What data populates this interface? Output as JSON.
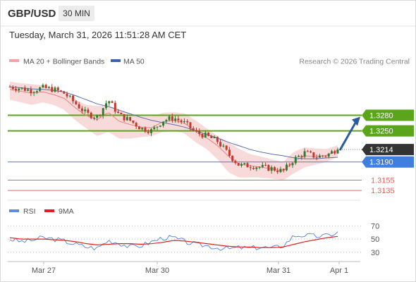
{
  "header": {
    "symbol": "GBP/USD",
    "timeframe": "30 MIN"
  },
  "datetime": "Tuesday, March 31, 2026 11:51:28 AM CET",
  "legend": {
    "ma20_label": "MA 20 + Bollinger Bands",
    "ma50_label": "MA 50",
    "copyright": "Research © 2026 Trading Central",
    "rsi_label": "RSI",
    "rsi_ma_label": "9MA"
  },
  "colors": {
    "bullish_candle": "#2f7d2f",
    "bearish_candle": "#c0392b",
    "bollinger_fill": "#f8d3d3",
    "ma20_line": "#e88080",
    "ma50_line": "#5470b0",
    "resistance": "#5aa51a",
    "current": "#333333",
    "pivot": "#3f7fe0",
    "support": "#e06666",
    "rsi_line": "#5b8ce0",
    "rsi_ma_line": "#e02020",
    "arrow": "#2c5aa0"
  },
  "chart_data": [
    {
      "type": "candlestick",
      "title": "GBP/USD 30 MIN",
      "ylim": [
        1.3123,
        1.3361
      ],
      "x_ticks": [
        "Mar 27",
        "Mar 30",
        "Mar 31",
        "Apr 1"
      ],
      "levels": [
        {
          "value": 1.328,
          "label": "1.3280",
          "kind": "resistance"
        },
        {
          "value": 1.325,
          "label": "1.3250",
          "kind": "resistance"
        },
        {
          "value": 1.3214,
          "label": "1.3214",
          "kind": "current"
        },
        {
          "value": 1.319,
          "label": "1.3190",
          "kind": "pivot"
        },
        {
          "value": 1.3155,
          "label": "1.3155",
          "kind": "support"
        },
        {
          "value": 1.3135,
          "label": "1.3135",
          "kind": "support"
        }
      ],
      "arrow": {
        "from_value": 1.3214,
        "to_value": 1.328,
        "direction": "up"
      },
      "series": [
        {
          "name": "MA 20 + Bollinger Bands",
          "kind": "band"
        },
        {
          "name": "MA 50",
          "kind": "line"
        }
      ],
      "anchors": [
        1.3335,
        1.3332,
        1.3328,
        1.3333,
        1.333,
        1.3322,
        1.3303,
        1.3283,
        1.3277,
        1.331,
        1.328,
        1.327,
        1.3255,
        1.325,
        1.327,
        1.3275,
        1.3265,
        1.3247,
        1.324,
        1.323,
        1.3205,
        1.3183,
        1.3183,
        1.318,
        1.3177,
        1.3172,
        1.3195,
        1.3208,
        1.32,
        1.3203,
        1.3216
      ],
      "bollinger_upper_anchors": [
        1.3345,
        1.3342,
        1.334,
        1.3338,
        1.333,
        1.3325,
        1.331,
        1.33,
        1.3298,
        1.33,
        1.329,
        1.3282,
        1.3278,
        1.3278,
        1.3285,
        1.3286,
        1.3284,
        1.327,
        1.3255,
        1.324,
        1.3228,
        1.3215,
        1.3205,
        1.32,
        1.3195,
        1.319,
        1.321,
        1.3218,
        1.3216,
        1.3215,
        1.3222
      ],
      "bollinger_lower_anchors": [
        1.331,
        1.3305,
        1.33,
        1.3305,
        1.33,
        1.329,
        1.327,
        1.3255,
        1.324,
        1.3248,
        1.3235,
        1.3235,
        1.3238,
        1.324,
        1.3248,
        1.325,
        1.3245,
        1.3228,
        1.3215,
        1.3195,
        1.317,
        1.316,
        1.316,
        1.316,
        1.3158,
        1.3155,
        1.3168,
        1.318,
        1.3185,
        1.319,
        1.32
      ],
      "ma50_anchors": [
        1.3335,
        1.3333,
        1.3331,
        1.333,
        1.3328,
        1.3325,
        1.3318,
        1.331,
        1.3302,
        1.3297,
        1.329,
        1.3283,
        1.3276,
        1.327,
        1.3266,
        1.3262,
        1.3257,
        1.325,
        1.3243,
        1.3236,
        1.3228,
        1.3221,
        1.3214,
        1.3209,
        1.3205,
        1.3202,
        1.3198,
        1.3196,
        1.3196,
        1.3198,
        1.3199
      ]
    },
    {
      "type": "line",
      "title": "RSI",
      "ylim": [
        18,
        80
      ],
      "y_ticks": [
        70,
        50,
        30
      ],
      "series": [
        {
          "name": "RSI",
          "anchors": [
            50,
            46,
            48,
            52,
            50,
            47,
            42,
            38,
            36,
            48,
            44,
            38,
            40,
            46,
            52,
            52,
            46,
            42,
            40,
            37,
            35,
            37,
            36,
            38,
            36,
            40,
            55,
            56,
            54,
            55,
            60
          ]
        },
        {
          "name": "9MA",
          "anchors": [
            52,
            50,
            50,
            50,
            49,
            48,
            46,
            43,
            41,
            42,
            43,
            43,
            42,
            43,
            45,
            48,
            47,
            45,
            43,
            41,
            39,
            38,
            38,
            37,
            37,
            38,
            42,
            46,
            49,
            52,
            54
          ]
        }
      ]
    }
  ]
}
